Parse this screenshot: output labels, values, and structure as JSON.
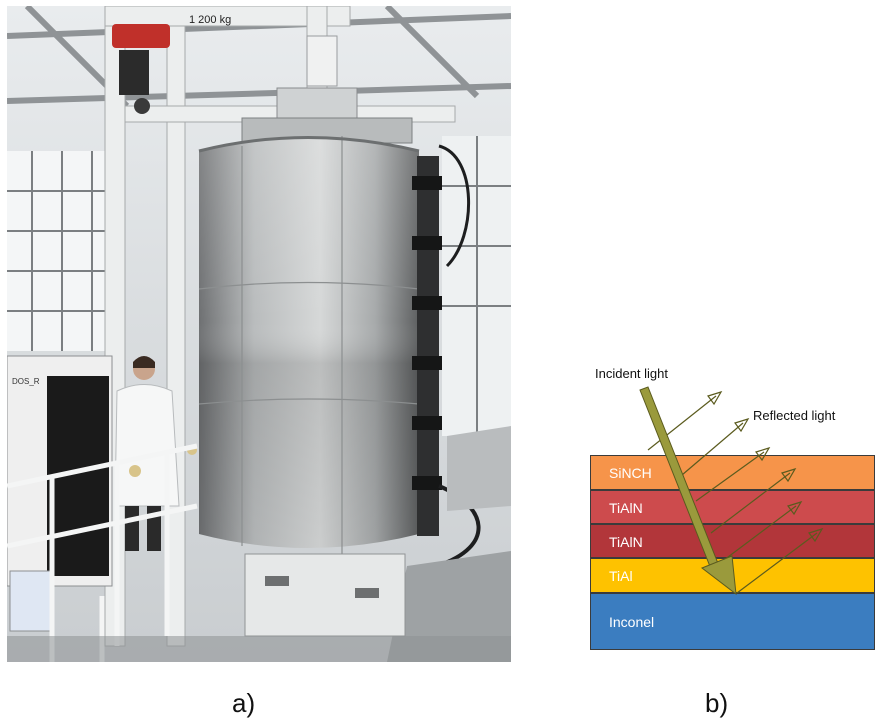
{
  "panels": {
    "a": {
      "label": "a)",
      "photo": {
        "crane_capacity": "1 200 kg",
        "cabinet_text": "DOS_R"
      }
    },
    "b": {
      "label": "b)",
      "incident_label": "Incident light",
      "reflected_label": "Reflected light",
      "layers": [
        {
          "name": "SiNCH",
          "color": "#f6944a"
        },
        {
          "name": "TiAlN",
          "color": "#cd4b4d"
        },
        {
          "name": "TiAlN",
          "color": "#b2363a"
        },
        {
          "name": "TiAl",
          "color": "#fec200"
        },
        {
          "name": "Inconel",
          "color": "#3b7dc0"
        }
      ],
      "colors": {
        "arrow_fill": "#9a9a3c",
        "arrow_stroke": "#5b5b1e"
      }
    }
  }
}
